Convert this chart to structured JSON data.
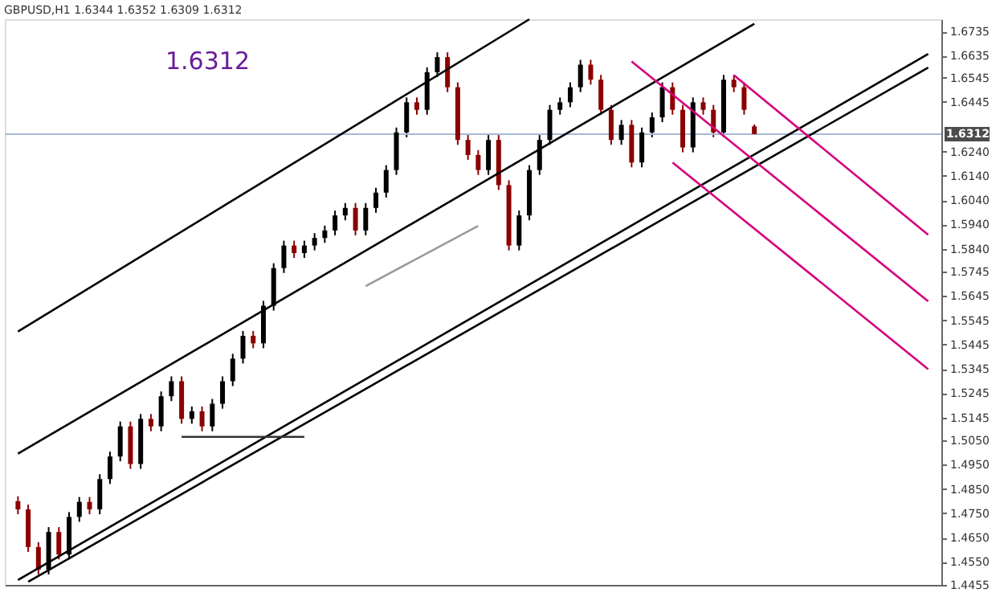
{
  "chart_data": {
    "type": "candlestick",
    "title": "GBPUSD,H1 1.6344 1.6352 1.6309 1.6312",
    "categories": [
      null,
      null,
      null,
      null,
      null,
      null,
      null,
      null,
      null,
      null,
      null,
      null,
      null,
      null,
      null,
      null,
      null,
      null,
      null,
      null,
      null,
      null,
      null,
      null,
      null,
      null,
      null,
      null,
      null,
      null,
      null,
      null,
      null,
      null,
      null,
      null,
      null,
      null,
      null,
      null,
      null,
      null,
      null,
      null,
      null,
      null,
      null,
      null,
      null,
      null,
      null,
      null,
      null,
      null,
      null,
      null,
      null,
      null,
      null,
      null,
      null,
      null,
      null,
      null,
      null,
      null,
      null,
      null,
      null,
      null,
      null,
      null,
      null,
      null,
      null,
      null,
      null,
      null,
      null,
      null,
      null,
      null,
      null,
      null,
      null,
      null,
      null,
      null,
      null,
      null
    ],
    "ohlc": [
      [
        1.48,
        1.482,
        1.4746,
        1.4766
      ],
      [
        1.4766,
        1.4786,
        1.4591,
        1.4611
      ],
      [
        1.4611,
        1.4631,
        1.4498,
        1.4518
      ],
      [
        1.4518,
        1.4693,
        1.4498,
        1.4673
      ],
      [
        1.4673,
        1.4693,
        1.456,
        1.458
      ],
      [
        1.458,
        1.4755,
        1.456,
        1.4735
      ],
      [
        1.4735,
        1.4817,
        1.4715,
        1.4797
      ],
      [
        1.4797,
        1.4817,
        1.4746,
        1.4766
      ],
      [
        1.4766,
        1.4911,
        1.4746,
        1.4891
      ],
      [
        1.4891,
        1.5004,
        1.4871,
        1.4984
      ],
      [
        1.4984,
        1.5128,
        1.4964,
        1.5108
      ],
      [
        1.5108,
        1.5128,
        1.4933,
        1.4953
      ],
      [
        1.4953,
        1.5159,
        1.4933,
        1.5139
      ],
      [
        1.5139,
        1.5159,
        1.5088,
        1.5108
      ],
      [
        1.5108,
        1.5252,
        1.5088,
        1.5232
      ],
      [
        1.5232,
        1.5314,
        1.5212,
        1.5294
      ],
      [
        1.5294,
        1.5314,
        1.5119,
        1.5139
      ],
      [
        1.5139,
        1.519,
        1.5119,
        1.517
      ],
      [
        1.517,
        1.519,
        1.5088,
        1.5108
      ],
      [
        1.5108,
        1.5221,
        1.5088,
        1.5201
      ],
      [
        1.5201,
        1.5314,
        1.5181,
        1.5294
      ],
      [
        1.5294,
        1.5407,
        1.5274,
        1.5387
      ],
      [
        1.5387,
        1.5501,
        1.5367,
        1.5481
      ],
      [
        1.5481,
        1.5501,
        1.543,
        1.545
      ],
      [
        1.545,
        1.5625,
        1.543,
        1.5605
      ],
      [
        1.5605,
        1.578,
        1.5585,
        1.576
      ],
      [
        1.576,
        1.5873,
        1.574,
        1.5853
      ],
      [
        1.5853,
        1.5873,
        1.5802,
        1.5822
      ],
      [
        1.5822,
        1.5873,
        1.5802,
        1.5853
      ],
      [
        1.5853,
        1.5904,
        1.5833,
        1.5884
      ],
      [
        1.5884,
        1.5935,
        1.5864,
        1.5915
      ],
      [
        1.5915,
        1.5997,
        1.5895,
        1.5977
      ],
      [
        1.5977,
        1.6028,
        1.5957,
        1.6008
      ],
      [
        1.6008,
        1.6028,
        1.5895,
        1.5915
      ],
      [
        1.5915,
        1.6028,
        1.5895,
        1.6008
      ],
      [
        1.6008,
        1.6091,
        1.5988,
        1.6071
      ],
      [
        1.6071,
        1.6184,
        1.6051,
        1.6164
      ],
      [
        1.6164,
        1.6339,
        1.6144,
        1.6319
      ],
      [
        1.6319,
        1.6463,
        1.6299,
        1.6443
      ],
      [
        1.6443,
        1.6463,
        1.6392,
        1.6412
      ],
      [
        1.6412,
        1.6587,
        1.6392,
        1.6567
      ],
      [
        1.6567,
        1.6649,
        1.6547,
        1.6629
      ],
      [
        1.6629,
        1.6649,
        1.6485,
        1.6505
      ],
      [
        1.6505,
        1.6525,
        1.6268,
        1.6288
      ],
      [
        1.6288,
        1.6308,
        1.6206,
        1.6226
      ],
      [
        1.6226,
        1.6246,
        1.6144,
        1.6164
      ],
      [
        1.6164,
        1.6308,
        1.6144,
        1.6288
      ],
      [
        1.6288,
        1.6308,
        1.6082,
        1.6102
      ],
      [
        1.6102,
        1.6122,
        1.5833,
        1.5853
      ],
      [
        1.5853,
        1.5997,
        1.5833,
        1.5977
      ],
      [
        1.5977,
        1.6184,
        1.5957,
        1.6164
      ],
      [
        1.6164,
        1.6308,
        1.6144,
        1.6288
      ],
      [
        1.6288,
        1.6432,
        1.6268,
        1.6412
      ],
      [
        1.6412,
        1.6463,
        1.6392,
        1.6443
      ],
      [
        1.6443,
        1.6525,
        1.6423,
        1.6505
      ],
      [
        1.6505,
        1.6618,
        1.6485,
        1.6598
      ],
      [
        1.6598,
        1.6618,
        1.6516,
        1.6536
      ],
      [
        1.6536,
        1.6556,
        1.6392,
        1.6412
      ],
      [
        1.6412,
        1.6432,
        1.6268,
        1.6288
      ],
      [
        1.6288,
        1.637,
        1.6268,
        1.635
      ],
      [
        1.635,
        1.637,
        1.6175,
        1.6195
      ],
      [
        1.6195,
        1.6339,
        1.6175,
        1.6319
      ],
      [
        1.6319,
        1.6401,
        1.6299,
        1.6381
      ],
      [
        1.6381,
        1.6525,
        1.6361,
        1.6505
      ],
      [
        1.6505,
        1.6525,
        1.6392,
        1.6412
      ],
      [
        1.6412,
        1.6432,
        1.6237,
        1.6257
      ],
      [
        1.6257,
        1.6463,
        1.6237,
        1.6443
      ],
      [
        1.6443,
        1.6463,
        1.6392,
        1.6412
      ],
      [
        1.6412,
        1.6432,
        1.6299,
        1.6319
      ],
      [
        1.6319,
        1.6556,
        1.6299,
        1.6536
      ],
      [
        1.6536,
        1.6556,
        1.6485,
        1.6505
      ],
      [
        1.6505,
        1.6525,
        1.6392,
        1.6412
      ],
      [
        1.6344,
        1.6352,
        1.6309,
        1.6312
      ],
      null,
      null,
      null,
      null,
      null,
      null,
      null,
      null,
      null,
      null,
      null,
      null,
      null,
      null,
      null,
      null,
      null
    ],
    "series": [
      {
        "type": "line",
        "color": "#000000",
        "values": [
          1.5499,
          null,
          null,
          null,
          null,
          null,
          null,
          null,
          null,
          null,
          null,
          null,
          null,
          null,
          null,
          null,
          null,
          null,
          null,
          null,
          null,
          null,
          null,
          null,
          null,
          null,
          null,
          null,
          null,
          null,
          null,
          null,
          null,
          null,
          null,
          null,
          null,
          null,
          null,
          null,
          null,
          null,
          null,
          null,
          null,
          null,
          null,
          null,
          null,
          null,
          1.6785,
          null,
          null,
          null,
          null,
          null,
          null,
          null,
          null,
          null,
          null,
          null,
          null,
          null,
          null,
          null,
          null,
          null,
          null,
          null,
          null,
          null,
          null,
          null,
          null,
          null,
          null,
          null,
          null,
          null,
          null,
          null,
          null,
          null,
          null,
          null,
          null,
          null,
          null,
          null
        ]
      },
      {
        "type": "line",
        "color": "#000000",
        "values": [
          1.4996,
          null,
          null,
          null,
          null,
          null,
          null,
          null,
          null,
          null,
          null,
          null,
          null,
          null,
          null,
          null,
          null,
          null,
          null,
          null,
          null,
          null,
          null,
          null,
          null,
          null,
          null,
          null,
          null,
          null,
          null,
          null,
          null,
          null,
          null,
          null,
          null,
          null,
          null,
          null,
          null,
          null,
          null,
          null,
          null,
          null,
          null,
          null,
          null,
          null,
          null,
          null,
          null,
          null,
          null,
          null,
          null,
          null,
          null,
          null,
          null,
          null,
          null,
          null,
          null,
          null,
          null,
          null,
          null,
          null,
          null,
          null,
          1.6766,
          null,
          null,
          null,
          null,
          null,
          null,
          null,
          null,
          null,
          null,
          null,
          null,
          null,
          null,
          null,
          null,
          null
        ]
      },
      {
        "type": "line",
        "color": "#000000",
        "values": [
          1.4475,
          null,
          null,
          null,
          null,
          null,
          null,
          null,
          null,
          null,
          null,
          null,
          null,
          null,
          null,
          null,
          null,
          null,
          null,
          null,
          null,
          null,
          null,
          null,
          null,
          null,
          null,
          null,
          null,
          null,
          null,
          null,
          null,
          null,
          null,
          null,
          null,
          null,
          null,
          null,
          null,
          null,
          null,
          null,
          null,
          null,
          null,
          null,
          null,
          null,
          null,
          null,
          null,
          null,
          null,
          null,
          null,
          null,
          null,
          null,
          null,
          null,
          null,
          null,
          null,
          null,
          null,
          null,
          null,
          null,
          null,
          null,
          null,
          null,
          null,
          null,
          null,
          null,
          null,
          null,
          null,
          null,
          null,
          null,
          null,
          null,
          null,
          null,
          null,
          1.6642
        ]
      },
      {
        "type": "line",
        "color": "#000000",
        "values": [
          null,
          1.4468,
          null,
          null,
          null,
          null,
          null,
          null,
          null,
          null,
          null,
          null,
          null,
          null,
          null,
          null,
          null,
          null,
          null,
          null,
          null,
          null,
          null,
          null,
          null,
          null,
          null,
          null,
          null,
          null,
          null,
          null,
          null,
          null,
          null,
          null,
          null,
          null,
          null,
          null,
          null,
          null,
          null,
          null,
          null,
          null,
          null,
          null,
          null,
          null,
          null,
          null,
          null,
          null,
          null,
          null,
          null,
          null,
          null,
          null,
          null,
          null,
          null,
          null,
          null,
          null,
          null,
          null,
          null,
          null,
          null,
          null,
          null,
          null,
          null,
          null,
          null,
          null,
          null,
          null,
          null,
          null,
          null,
          null,
          null,
          null,
          null,
          null,
          null,
          1.6586
        ]
      },
      {
        "type": "line",
        "color": "#d6007e",
        "values": [
          null,
          null,
          null,
          null,
          null,
          null,
          null,
          null,
          null,
          null,
          null,
          null,
          null,
          null,
          null,
          null,
          null,
          null,
          null,
          null,
          null,
          null,
          null,
          null,
          null,
          null,
          null,
          null,
          null,
          null,
          null,
          null,
          null,
          null,
          null,
          null,
          null,
          null,
          null,
          null,
          null,
          null,
          null,
          null,
          null,
          null,
          null,
          null,
          null,
          null,
          null,
          null,
          null,
          null,
          null,
          null,
          null,
          null,
          null,
          null,
          null,
          null,
          null,
          null,
          null,
          null,
          null,
          null,
          null,
          null,
          1.6555,
          null,
          null,
          null,
          null,
          null,
          null,
          null,
          null,
          null,
          null,
          null,
          null,
          null,
          null,
          null,
          null,
          null,
          null,
          1.5897
        ]
      },
      {
        "type": "line",
        "color": "#d6007e",
        "values": [
          null,
          null,
          null,
          null,
          null,
          null,
          null,
          null,
          null,
          null,
          null,
          null,
          null,
          null,
          null,
          null,
          null,
          null,
          null,
          null,
          null,
          null,
          null,
          null,
          null,
          null,
          null,
          null,
          null,
          null,
          null,
          null,
          null,
          null,
          null,
          null,
          null,
          null,
          null,
          null,
          null,
          null,
          null,
          null,
          null,
          null,
          null,
          null,
          null,
          null,
          null,
          null,
          null,
          null,
          null,
          null,
          null,
          null,
          null,
          null,
          1.6611,
          null,
          null,
          null,
          null,
          null,
          null,
          null,
          null,
          null,
          null,
          null,
          null,
          null,
          null,
          null,
          null,
          null,
          null,
          null,
          null,
          null,
          null,
          null,
          null,
          null,
          null,
          null,
          null,
          1.5623
        ]
      },
      {
        "type": "line",
        "color": "#d6007e",
        "values": [
          null,
          null,
          null,
          null,
          null,
          null,
          null,
          null,
          null,
          null,
          null,
          null,
          null,
          null,
          null,
          null,
          null,
          null,
          null,
          null,
          null,
          null,
          null,
          null,
          null,
          null,
          null,
          null,
          null,
          null,
          null,
          null,
          null,
          null,
          null,
          null,
          null,
          null,
          null,
          null,
          null,
          null,
          null,
          null,
          null,
          null,
          null,
          null,
          null,
          null,
          null,
          null,
          null,
          null,
          null,
          null,
          null,
          null,
          null,
          null,
          null,
          null,
          null,
          null,
          1.6195,
          null,
          null,
          null,
          null,
          null,
          null,
          null,
          null,
          null,
          null,
          null,
          null,
          null,
          null,
          null,
          null,
          null,
          null,
          null,
          null,
          null,
          null,
          null,
          null,
          1.5344
        ]
      },
      {
        "type": "line",
        "color": "#333333",
        "values": [
          null,
          null,
          null,
          null,
          null,
          null,
          null,
          null,
          null,
          null,
          null,
          null,
          null,
          null,
          null,
          null,
          1.5065,
          null,
          null,
          null,
          null,
          null,
          null,
          null,
          null,
          null,
          null,
          null,
          1.5065,
          null,
          null,
          null,
          null,
          null,
          null,
          null,
          null,
          null,
          null,
          null,
          null,
          null,
          null,
          null,
          null,
          null,
          null,
          null,
          null,
          null,
          null,
          null,
          null,
          null,
          null,
          null,
          null,
          null,
          null,
          null,
          null,
          null,
          null,
          null,
          null,
          null,
          null,
          null,
          null,
          null,
          null,
          null,
          null,
          null,
          null,
          null,
          null,
          null,
          null,
          null,
          null,
          null,
          null,
          null,
          null,
          null,
          null,
          null,
          null,
          null
        ]
      },
      {
        "type": "line",
        "color": "#999999",
        "values": [
          null,
          null,
          null,
          null,
          null,
          null,
          null,
          null,
          null,
          null,
          null,
          null,
          null,
          null,
          null,
          null,
          null,
          null,
          null,
          null,
          null,
          null,
          null,
          null,
          null,
          null,
          null,
          null,
          null,
          null,
          null,
          null,
          null,
          null,
          1.5686,
          null,
          null,
          null,
          null,
          null,
          null,
          null,
          null,
          null,
          null,
          1.5934,
          null,
          null,
          null,
          null,
          null,
          null,
          null,
          null,
          null,
          null,
          null,
          null,
          null,
          null,
          null,
          null,
          null,
          null,
          null,
          null,
          null,
          null,
          null,
          null,
          null,
          null,
          null,
          null,
          null,
          null,
          null,
          null,
          null,
          null,
          null,
          null,
          null,
          null,
          null,
          null,
          null,
          null,
          null,
          null
        ]
      }
    ],
    "ref_lines": [
      {
        "axis": "y",
        "value": 1.6312,
        "label": "1.6312",
        "color": "#a6b8d6"
      }
    ],
    "annotations": [
      "1.6312"
    ],
    "ylim": [
      1.4455,
      1.6785
    ],
    "yticks": [
      1.4455,
      {
        "value": 1.455,
        "label": "1.4550"
      },
      {
        "value": 1.465,
        "label": "1.4650"
      },
      {
        "value": 1.475,
        "label": "1.4750"
      },
      {
        "value": 1.485,
        "label": "1.4850"
      },
      {
        "value": 1.495,
        "label": "1.4950"
      },
      {
        "value": 1.505,
        "label": "1.5050"
      },
      1.5145,
      1.5245,
      1.5345,
      1.5445,
      1.5545,
      1.5645,
      1.5745,
      {
        "value": 1.584,
        "label": "1.5840"
      },
      {
        "value": 1.594,
        "label": "1.5940"
      },
      {
        "value": 1.604,
        "label": "1.6040"
      },
      {
        "value": 1.614,
        "label": "1.6140"
      },
      {
        "value": 1.624,
        "label": "1.6240"
      },
      1.6445,
      1.6545,
      1.6635,
      1.6735
    ],
    "tick_labels": "y",
    "grid": false,
    "legend": false
  }
}
